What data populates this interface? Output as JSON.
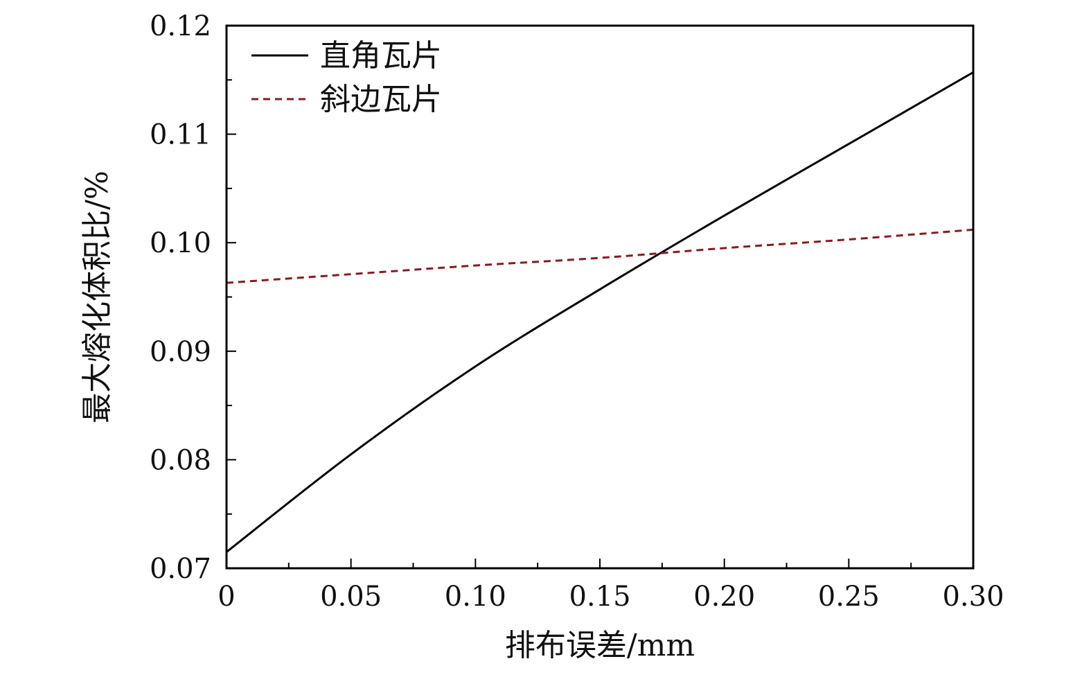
{
  "chart_data": {
    "type": "line",
    "title": "",
    "xlabel": "排布误差/mm",
    "ylabel": "最大熔化体积比/%",
    "xlim": [
      0,
      0.3
    ],
    "ylim": [
      0.07,
      0.12
    ],
    "x_ticks": [
      0,
      0.05,
      0.1,
      0.15,
      0.2,
      0.25,
      0.3
    ],
    "x_tick_labels": [
      "0",
      "0.05",
      "0.10",
      "0.15",
      "0.20",
      "0.25",
      "0.30"
    ],
    "y_ticks": [
      0.07,
      0.08,
      0.09,
      0.1,
      0.11,
      0.12
    ],
    "y_tick_labels": [
      "0.07",
      "0.08",
      "0.09",
      "0.10",
      "0.11",
      "0.12"
    ],
    "grid": false,
    "legend_position": "top-left",
    "series": [
      {
        "name": "直角瓦片",
        "style": "solid",
        "color": "#000000",
        "x": [
          0,
          0.05,
          0.1,
          0.15,
          0.2,
          0.25,
          0.3
        ],
        "y": [
          0.0715,
          0.0805,
          0.0886,
          0.0957,
          0.1025,
          0.1091,
          0.1157
        ]
      },
      {
        "name": "斜边瓦片",
        "style": "dashed",
        "color": "#8b1a1a",
        "x": [
          0,
          0.05,
          0.1,
          0.15,
          0.2,
          0.25,
          0.3
        ],
        "y": [
          0.0963,
          0.0971,
          0.0979,
          0.0986,
          0.0995,
          0.1003,
          0.1012
        ]
      }
    ]
  }
}
